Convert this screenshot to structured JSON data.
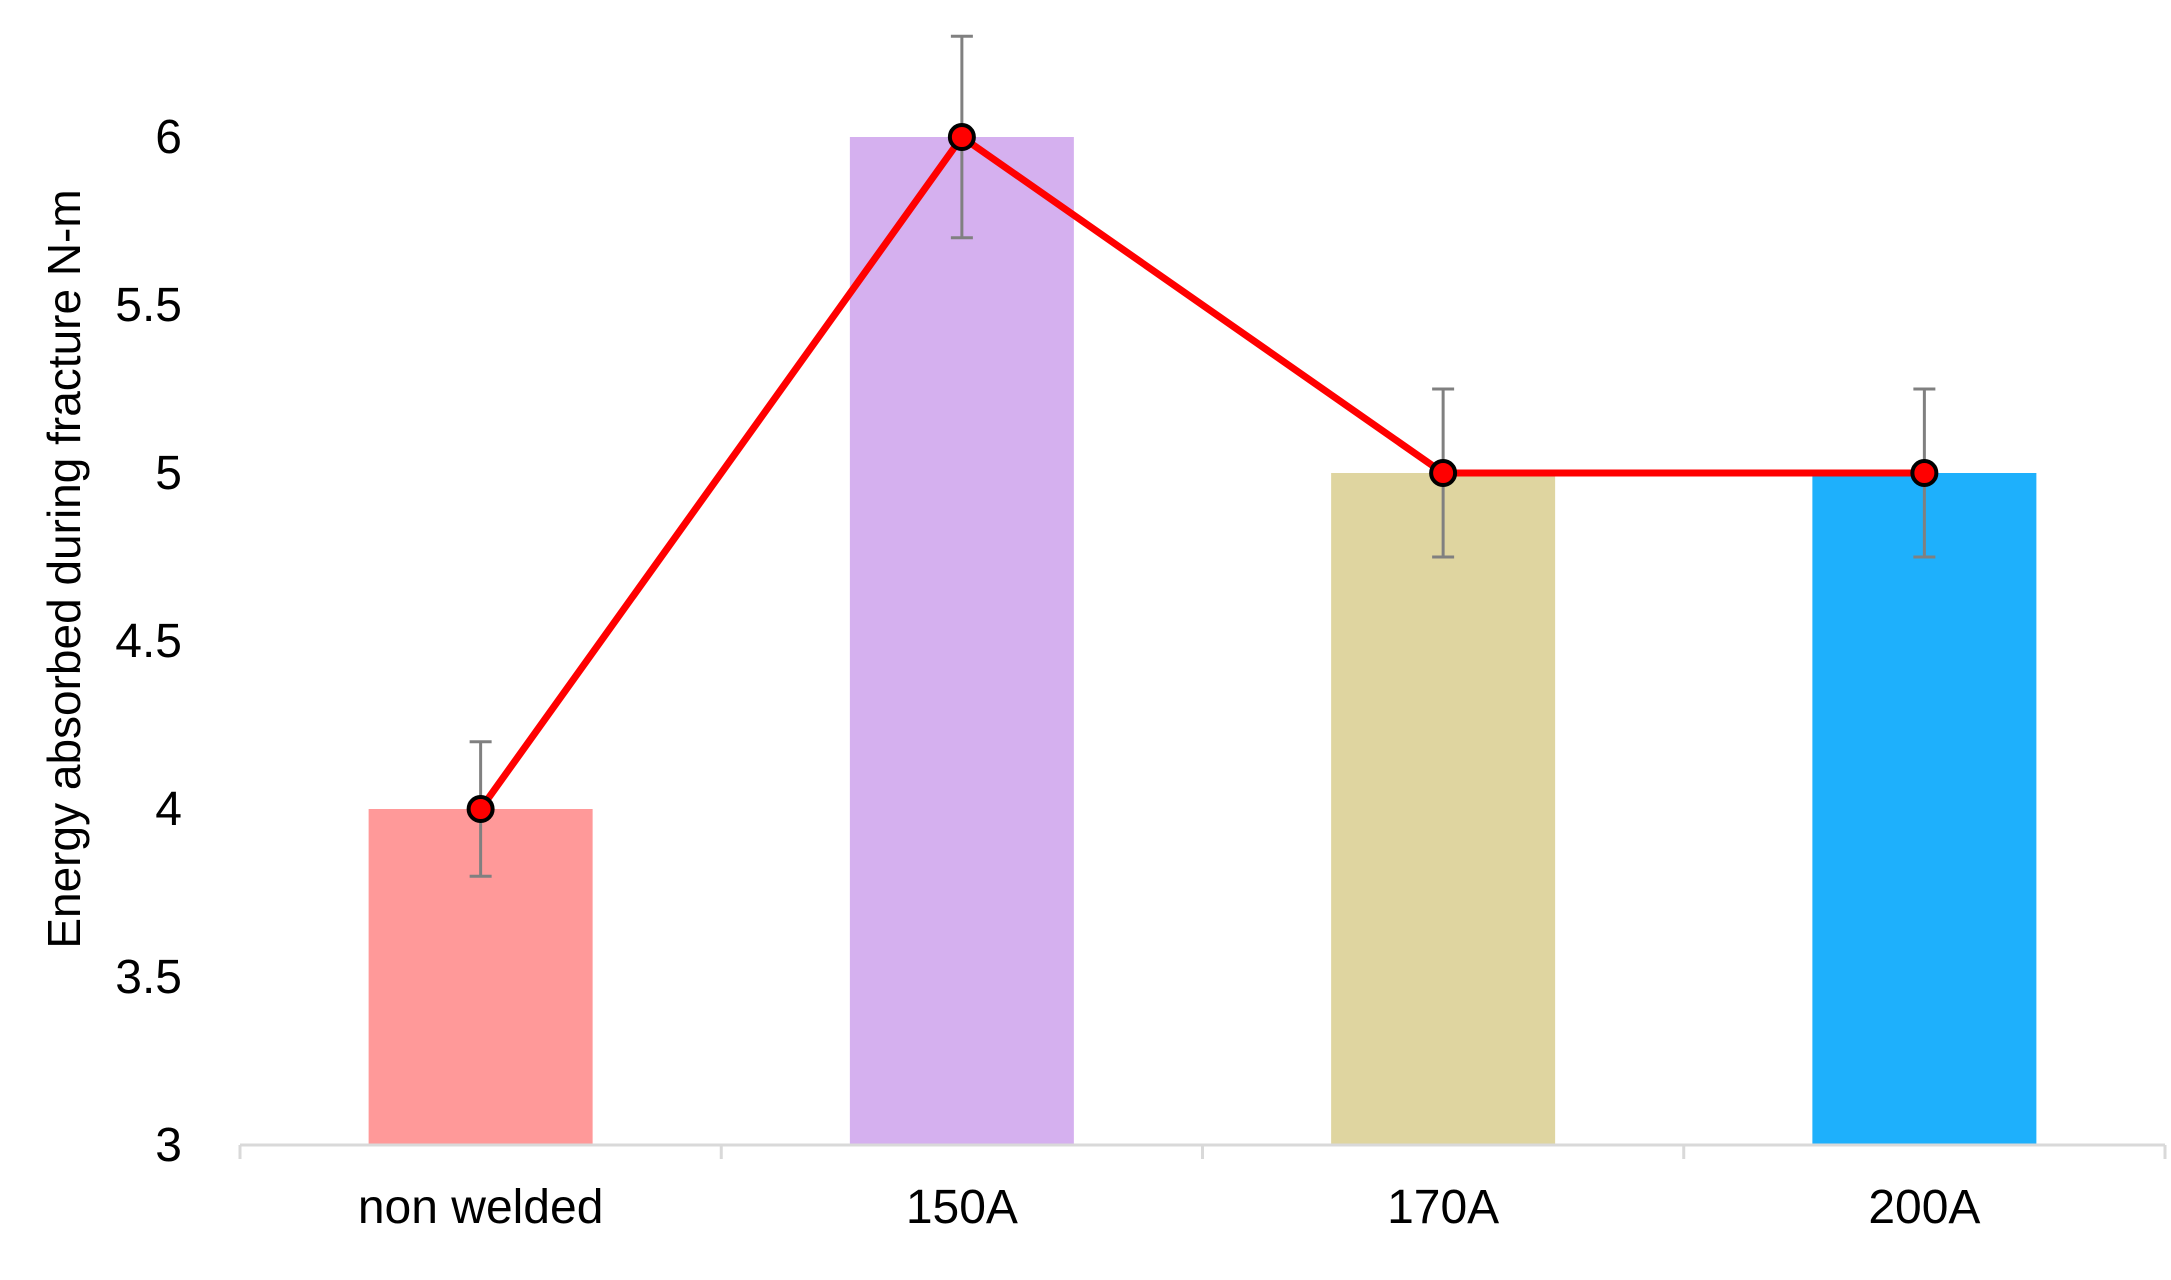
{
  "chart_data": {
    "type": "bar",
    "title": "",
    "xlabel": "",
    "ylabel": "Energy absorbed during fracture N-m",
    "categories": [
      "non welded",
      "150A",
      "170A",
      "200A"
    ],
    "values": [
      4,
      6,
      5,
      5
    ],
    "error": [
      0.2,
      0.3,
      0.25,
      0.25
    ],
    "bar_colors": [
      "#FF9999",
      "#D5B0EF",
      "#DFD5A0",
      "#1EB0FC"
    ],
    "line": {
      "values": [
        4,
        6,
        5,
        5
      ],
      "color": "#FF0000",
      "marker_fill": "#FF0000",
      "marker_edge": "#000000"
    },
    "error_bar_color": "#808080",
    "axis_color": "#D9D9D9",
    "ylim": [
      3,
      6.25
    ],
    "yticks": [
      3,
      3.5,
      4,
      4.5,
      5,
      5.5,
      6
    ],
    "ytick_labels": [
      "3",
      "3.5",
      "4",
      "4.5",
      "5",
      "5.5",
      "6"
    ],
    "grid": false,
    "legend": "none"
  }
}
